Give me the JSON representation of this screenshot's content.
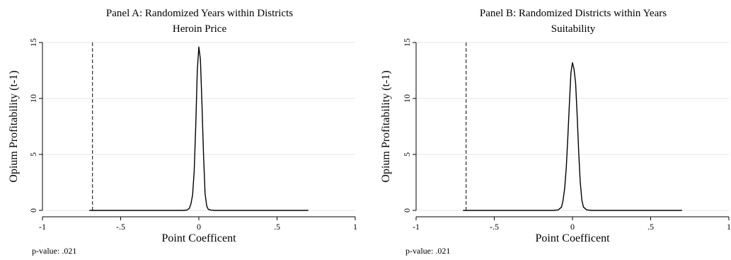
{
  "chart_data": [
    {
      "type": "line",
      "title": "Panel A: Randomized Years within Districts",
      "subtitle": "Heroin Price",
      "xlabel": "Point Coefficent",
      "ylabel": "Opium Profitability (t-1)",
      "xlim": [
        -1,
        1
      ],
      "ylim": [
        0,
        15
      ],
      "x_ticks": [
        -1,
        -0.5,
        0,
        0.5,
        1
      ],
      "x_tick_labels": [
        "-1",
        "-.5",
        "0",
        ".5",
        "1"
      ],
      "y_ticks": [
        0,
        5,
        10,
        15
      ],
      "y_tick_labels": [
        "0",
        "5",
        "10",
        "15"
      ],
      "grid": "horizontal",
      "reference_line": {
        "x": -0.68,
        "style": "dashed"
      },
      "note": "p-value: .021",
      "series": [
        {
          "x": [
            -0.7,
            -0.3,
            -0.1,
            -0.075,
            -0.06,
            -0.05,
            -0.04,
            -0.03,
            -0.02,
            -0.01,
            0,
            0.01,
            0.02,
            0.03,
            0.04,
            0.05,
            0.06,
            0.08,
            0.1,
            0.3,
            0.7
          ],
          "y": [
            0,
            0,
            0,
            0.03,
            0.2,
            0.6,
            1.4,
            3.5,
            7.5,
            12.5,
            14.6,
            13.5,
            9.5,
            5,
            1.5,
            0.4,
            0.1,
            0.02,
            0,
            0,
            0
          ]
        }
      ]
    },
    {
      "type": "line",
      "title": "Panel B: Randomized Districts within Years",
      "subtitle": "Suitability",
      "xlabel": "Point Coefficent",
      "ylabel": "Opium Profitability (t-1)",
      "xlim": [
        -1,
        1
      ],
      "ylim": [
        0,
        15
      ],
      "x_ticks": [
        -1,
        -0.5,
        0,
        0.5,
        1
      ],
      "x_tick_labels": [
        "-1",
        "-.5",
        "0",
        ".5",
        "1"
      ],
      "y_ticks": [
        0,
        5,
        10,
        15
      ],
      "y_tick_labels": [
        "0",
        "5",
        "10",
        "15"
      ],
      "grid": "horizontal",
      "reference_line": {
        "x": -0.68,
        "style": "dashed"
      },
      "note": "p-value: .021",
      "series": [
        {
          "x": [
            -0.7,
            -0.3,
            -0.12,
            -0.09,
            -0.07,
            -0.06,
            -0.05,
            -0.04,
            -0.03,
            -0.02,
            -0.01,
            0,
            0.01,
            0.02,
            0.03,
            0.04,
            0.05,
            0.06,
            0.07,
            0.09,
            0.12,
            0.3,
            0.7
          ],
          "y": [
            0,
            0,
            0,
            0.05,
            0.3,
            0.9,
            2,
            3.8,
            6.5,
            9.5,
            12.3,
            13.2,
            12.6,
            11.4,
            8.5,
            5.2,
            2.5,
            0.9,
            0.3,
            0.05,
            0,
            0,
            0
          ]
        }
      ]
    }
  ]
}
